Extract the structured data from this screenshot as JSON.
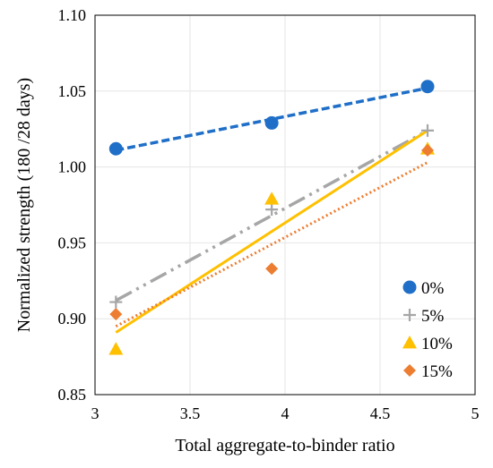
{
  "chart_data": {
    "type": "scatter",
    "xlabel": "Total aggregate-to-binder ratio",
    "ylabel": "Normalized strength (180 /28 days)",
    "xlim": [
      3,
      5
    ],
    "ylim": [
      0.85,
      1.1
    ],
    "x_ticks": [
      "3",
      "3.5",
      "4",
      "4.5",
      "5"
    ],
    "y_ticks": [
      "0.85",
      "0.90",
      "0.95",
      "1.00",
      "1.05",
      "1.10"
    ],
    "grid": true,
    "legend_position": "bottom-right",
    "series": [
      {
        "name": "0%",
        "marker": "circle",
        "color": "#1f6fc8",
        "line_style": "dashed",
        "points": [
          [
            3.11,
            1.012
          ],
          [
            3.93,
            1.029
          ],
          [
            4.75,
            1.053
          ]
        ],
        "trend": [
          [
            3.11,
            1.011
          ],
          [
            4.75,
            1.052
          ]
        ]
      },
      {
        "name": "5%",
        "marker": "plus",
        "color": "#a6a6a6",
        "line_style": "dash-dot-dot",
        "points": [
          [
            3.11,
            0.911
          ],
          [
            3.93,
            0.972
          ],
          [
            4.75,
            1.024
          ]
        ],
        "trend": [
          [
            3.11,
            0.912
          ],
          [
            4.75,
            1.024
          ]
        ]
      },
      {
        "name": "10%",
        "marker": "triangle",
        "color": "#ffc000",
        "line_style": "solid",
        "points": [
          [
            3.11,
            0.88
          ],
          [
            3.93,
            0.979
          ],
          [
            4.75,
            1.012
          ]
        ],
        "trend": [
          [
            3.11,
            0.891
          ],
          [
            4.75,
            1.024
          ]
        ]
      },
      {
        "name": "15%",
        "marker": "diamond",
        "color": "#ed7d31",
        "line_style": "dotted",
        "points": [
          [
            3.11,
            0.903
          ],
          [
            3.93,
            0.933
          ],
          [
            4.75,
            1.011
          ]
        ],
        "trend": [
          [
            3.11,
            0.895
          ],
          [
            4.75,
            1.003
          ]
        ]
      }
    ]
  }
}
